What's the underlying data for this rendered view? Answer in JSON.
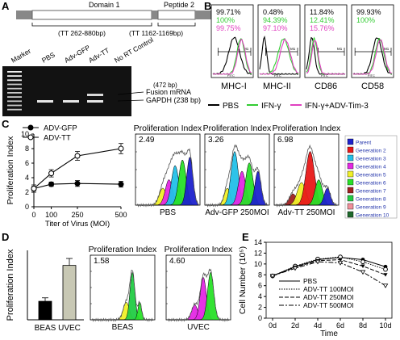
{
  "panels": {
    "A": {
      "letter": "A",
      "domain1": "Domain 1",
      "peptide2": "Peptide 2",
      "range1": "(TT 262-880bp)",
      "range2": "(TT 1162-1169bp)",
      "lanes": [
        "Marker",
        "PBS",
        "Adv-GFP",
        "Adv-TT",
        "No RT Control"
      ],
      "band_472": "(472 bp)",
      "fusion": "Fusion mRNA",
      "gapdh": "GAPDH (238 bp)"
    },
    "B": {
      "letter": "B",
      "histograms": [
        {
          "marker": "MHC-I",
          "values": [
            "99.71%",
            "100%",
            "99.75%"
          ]
        },
        {
          "marker": "MHC-II",
          "values": [
            "0.48%",
            "94.39%",
            "97.10%"
          ]
        },
        {
          "marker": "CD86",
          "values": [
            "11.84%",
            "12.41%",
            "15.76%"
          ]
        },
        {
          "marker": "CD58",
          "values": [
            "99.93%",
            "100%"
          ]
        }
      ],
      "legend": [
        "PBS",
        "IFN-γ",
        "IFN-γ+ADV-Tim-3"
      ],
      "fitc": "FITC",
      "m1": "M1",
      "colors": {
        "PBS": "#000000",
        "IFN": "#33cc33",
        "IFN_TIM3": "#e040c0"
      }
    },
    "C": {
      "letter": "C",
      "flow_panels": [
        {
          "title": "Proliferation Index",
          "index": "2.49",
          "label": "PBS"
        },
        {
          "title": "Proliferation Index",
          "index": "3.26",
          "label": "Adv-GFP 250MOI"
        },
        {
          "title": "Proliferation Index",
          "index": "6.98",
          "label": "Adv-TT 250MOI"
        }
      ],
      "generations": [
        "Parent",
        "Generation 2",
        "Generation 3",
        "Generation 4",
        "Generation 5",
        "Generation 6",
        "Generation 7",
        "Generation 8",
        "Generation 9",
        "Generation 10"
      ],
      "gen_colors": [
        "#1e22cc",
        "#e81818",
        "#22c0e8",
        "#e428e4",
        "#f0f028",
        "#28e028",
        "#a02020",
        "#22cc44",
        "#f08f9a",
        "#1e6a2c"
      ]
    },
    "D": {
      "letter": "D",
      "flow_panels": [
        {
          "title": "Proliferation Index",
          "index": "1.58",
          "label": "BEAS"
        },
        {
          "title": "Proliferation Index",
          "index": "4.60",
          "label": "UVEC"
        }
      ]
    },
    "E": {
      "letter": "E"
    }
  },
  "chart_data": [
    {
      "id": "C",
      "type": "line",
      "title": "",
      "xlabel": "Titer of Virus (MOI)",
      "ylabel": "Proliferation Index",
      "x": [
        0,
        100,
        250,
        500
      ],
      "xlim": [
        0,
        500
      ],
      "ylim": [
        0,
        10
      ],
      "xticks": [
        0,
        100,
        250,
        500
      ],
      "yticks": [
        0,
        2,
        4,
        6,
        8,
        10
      ],
      "legend_position": "top-left",
      "series": [
        {
          "name": "ADV-GFP",
          "values": [
            2.5,
            3.1,
            3.2,
            3.1
          ],
          "errors": [
            0.3,
            0.3,
            0.4,
            0.4
          ]
        },
        {
          "name": "ADV-TT",
          "values": [
            2.5,
            4.6,
            7.0,
            8.0
          ],
          "errors": [
            0.5,
            0.5,
            0.6,
            0.7
          ]
        }
      ]
    },
    {
      "id": "D",
      "type": "bar",
      "title": "",
      "xlabel": "",
      "ylabel": "Proliferation Index",
      "categories": [
        "BEAS",
        "UVEC"
      ],
      "values": [
        1.6,
        4.7
      ],
      "errors": [
        0.3,
        0.6
      ],
      "ylim": [
        0,
        6
      ],
      "colors": [
        "#000000",
        "#c8c8b4"
      ]
    },
    {
      "id": "E",
      "type": "line",
      "title": "",
      "xlabel": "Time",
      "ylabel": "Cell Number (10⁵)",
      "categories": [
        "0d",
        "2d",
        "4d",
        "6d",
        "8d",
        "10d"
      ],
      "ylim": [
        0,
        14
      ],
      "yticks": [
        0,
        2,
        4,
        6,
        8,
        10,
        12,
        14
      ],
      "legend_position": "bottom",
      "series": [
        {
          "name": "PBS",
          "values": [
            7.8,
            9.5,
            10.8,
            11.2,
            10.8,
            9.5
          ]
        },
        {
          "name": "ADV-TT 100MOI",
          "values": [
            7.8,
            9.6,
            10.9,
            11.3,
            10.4,
            9.0
          ]
        },
        {
          "name": "ADV-TT 250MOI",
          "values": [
            7.8,
            9.4,
            10.6,
            10.8,
            9.6,
            8.0
          ]
        },
        {
          "name": "ADV-TT 500MOI",
          "values": [
            7.8,
            9.2,
            10.4,
            10.2,
            8.5,
            6.0
          ]
        }
      ]
    }
  ]
}
